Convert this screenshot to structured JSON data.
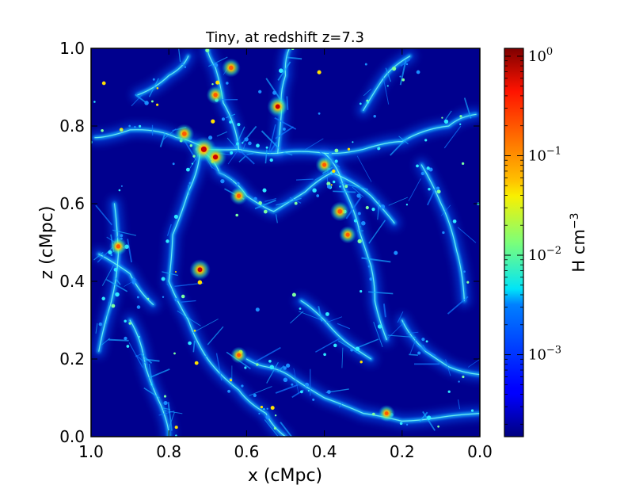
{
  "chart_data": {
    "type": "heatmap",
    "title": "Tiny, at redshift z=7.3",
    "xlabel": "x (cMpc)",
    "ylabel": "z (cMpc)",
    "xlim": [
      1.0,
      0.0
    ],
    "ylim": [
      0.0,
      1.0
    ],
    "x_ticks": [
      1.0,
      0.8,
      0.6,
      0.4,
      0.2,
      0.0
    ],
    "x_tick_labels": [
      "1.0",
      "0.8",
      "0.6",
      "0.4",
      "0.2",
      "0.0"
    ],
    "y_ticks": [
      0.0,
      0.2,
      0.4,
      0.6,
      0.8,
      1.0
    ],
    "y_tick_labels": [
      "0.0",
      "0.2",
      "0.4",
      "0.6",
      "0.8",
      "1.0"
    ],
    "colorbar": {
      "label": "H cm",
      "label_exponent": "−3",
      "scale": "log",
      "range": [
        0.00015,
        1.2
      ],
      "colormap": "jet",
      "ticks": [
        {
          "value": 1,
          "base": "10",
          "exp": "0"
        },
        {
          "value": 0.1,
          "base": "10",
          "exp": "−1"
        },
        {
          "value": 0.01,
          "base": "10",
          "exp": "−2"
        },
        {
          "value": 0.001,
          "base": "10",
          "exp": "−3"
        }
      ]
    },
    "filaments": [
      [
        [
          0.99,
          0.77
        ],
        [
          0.9,
          0.79
        ],
        [
          0.78,
          0.77
        ],
        [
          0.7,
          0.74
        ],
        [
          0.62,
          0.74
        ],
        [
          0.52,
          0.73
        ],
        [
          0.4,
          0.73
        ],
        [
          0.3,
          0.74
        ],
        [
          0.2,
          0.76
        ],
        [
          0.08,
          0.8
        ],
        [
          0.01,
          0.83
        ]
      ],
      [
        [
          0.72,
          0.74
        ],
        [
          0.67,
          0.68
        ],
        [
          0.6,
          0.62
        ],
        [
          0.53,
          0.58
        ],
        [
          0.45,
          0.63
        ],
        [
          0.38,
          0.68
        ],
        [
          0.28,
          0.62
        ],
        [
          0.22,
          0.55
        ]
      ],
      [
        [
          0.4,
          0.73
        ],
        [
          0.35,
          0.64
        ],
        [
          0.31,
          0.53
        ],
        [
          0.28,
          0.44
        ],
        [
          0.27,
          0.35
        ],
        [
          0.24,
          0.25
        ]
      ],
      [
        [
          0.72,
          0.74
        ],
        [
          0.75,
          0.63
        ],
        [
          0.79,
          0.52
        ],
        [
          0.8,
          0.4
        ],
        [
          0.75,
          0.3
        ],
        [
          0.7,
          0.2
        ],
        [
          0.62,
          0.12
        ],
        [
          0.55,
          0.06
        ],
        [
          0.5,
          0.0
        ]
      ],
      [
        [
          0.62,
          0.74
        ],
        [
          0.66,
          0.86
        ],
        [
          0.68,
          0.95
        ],
        [
          0.7,
          1.0
        ]
      ],
      [
        [
          0.52,
          0.73
        ],
        [
          0.51,
          0.84
        ],
        [
          0.5,
          0.93
        ],
        [
          0.49,
          1.0
        ]
      ],
      [
        [
          0.94,
          0.6
        ],
        [
          0.93,
          0.47
        ],
        [
          0.95,
          0.34
        ],
        [
          0.98,
          0.22
        ]
      ],
      [
        [
          0.9,
          0.3
        ],
        [
          0.86,
          0.18
        ],
        [
          0.82,
          0.08
        ],
        [
          0.8,
          0.0
        ]
      ],
      [
        [
          0.6,
          0.2
        ],
        [
          0.55,
          0.18
        ],
        [
          0.48,
          0.15
        ],
        [
          0.4,
          0.1
        ],
        [
          0.3,
          0.06
        ],
        [
          0.2,
          0.04
        ],
        [
          0.1,
          0.05
        ],
        [
          0.0,
          0.06
        ]
      ],
      [
        [
          0.3,
          0.84
        ],
        [
          0.25,
          0.92
        ],
        [
          0.18,
          0.98
        ]
      ],
      [
        [
          0.15,
          0.7
        ],
        [
          0.1,
          0.6
        ],
        [
          0.06,
          0.48
        ],
        [
          0.04,
          0.35
        ]
      ],
      [
        [
          0.88,
          0.88
        ],
        [
          0.8,
          0.93
        ],
        [
          0.75,
          0.98
        ]
      ],
      [
        [
          0.46,
          0.35
        ],
        [
          0.4,
          0.3
        ],
        [
          0.34,
          0.24
        ],
        [
          0.28,
          0.2
        ]
      ],
      [
        [
          0.98,
          0.47
        ],
        [
          0.9,
          0.42
        ],
        [
          0.84,
          0.34
        ]
      ],
      [
        [
          0.2,
          0.3
        ],
        [
          0.14,
          0.22
        ],
        [
          0.08,
          0.18
        ],
        [
          0.0,
          0.16
        ]
      ]
    ],
    "hotspots": [
      {
        "x": 0.71,
        "z": 0.74,
        "v": 1.0
      },
      {
        "x": 0.68,
        "z": 0.72,
        "v": 0.8
      },
      {
        "x": 0.76,
        "z": 0.78,
        "v": 0.6
      },
      {
        "x": 0.62,
        "z": 0.62,
        "v": 0.5
      },
      {
        "x": 0.52,
        "z": 0.85,
        "v": 0.7
      },
      {
        "x": 0.68,
        "z": 0.88,
        "v": 0.5
      },
      {
        "x": 0.36,
        "z": 0.58,
        "v": 0.6
      },
      {
        "x": 0.72,
        "z": 0.43,
        "v": 0.7
      },
      {
        "x": 0.93,
        "z": 0.49,
        "v": 0.5
      },
      {
        "x": 0.34,
        "z": 0.52,
        "v": 0.45
      },
      {
        "x": 0.62,
        "z": 0.21,
        "v": 0.4
      },
      {
        "x": 0.24,
        "z": 0.06,
        "v": 0.4
      },
      {
        "x": 0.4,
        "z": 0.7,
        "v": 0.45
      },
      {
        "x": 0.64,
        "z": 0.95,
        "v": 0.55
      }
    ]
  }
}
